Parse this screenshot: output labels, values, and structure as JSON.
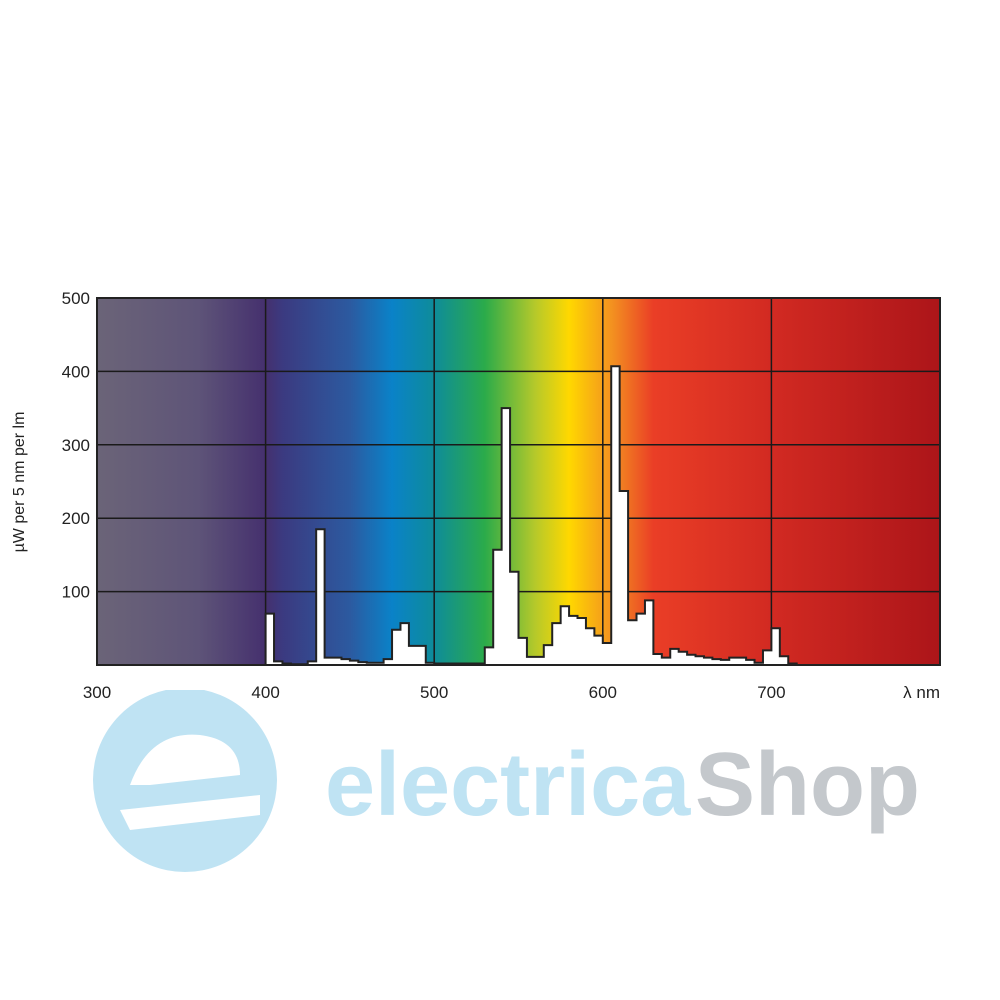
{
  "chart_data": {
    "type": "bar",
    "title": "",
    "xlabel": "λ nm",
    "ylabel": "µW per 5 nm per lm",
    "xlim": [
      300,
      800
    ],
    "ylim": [
      0,
      500
    ],
    "x_ticks": [
      "300",
      "400",
      "500",
      "600",
      "700"
    ],
    "y_ticks": [
      "100",
      "200",
      "300",
      "400",
      "500"
    ],
    "grid": true,
    "bin_width_nm": 5,
    "bin_start_nm": 400,
    "values": [
      70,
      5,
      2,
      1,
      1,
      5,
      185,
      10,
      10,
      8,
      6,
      4,
      3,
      3,
      8,
      48,
      57,
      26,
      26,
      3,
      2,
      2,
      2,
      2,
      2,
      2,
      24,
      157,
      350,
      127,
      37,
      11,
      11,
      27,
      57,
      80,
      67,
      64,
      50,
      40,
      30,
      407,
      237,
      61,
      70,
      88,
      15,
      10,
      22,
      18,
      14,
      12,
      10,
      8,
      7,
      10,
      10,
      7,
      3,
      20,
      50,
      12,
      2,
      0
    ],
    "background": "visible spectrum color gradient",
    "colors": {
      "bars": "#ffffff",
      "outline": "#222222",
      "grid": "#1a1a1a"
    }
  },
  "watermark": {
    "text_part1": "electrica",
    "text_part2": "Shop",
    "color1": "#bfe3f3",
    "color2": "#c4c8cc"
  }
}
